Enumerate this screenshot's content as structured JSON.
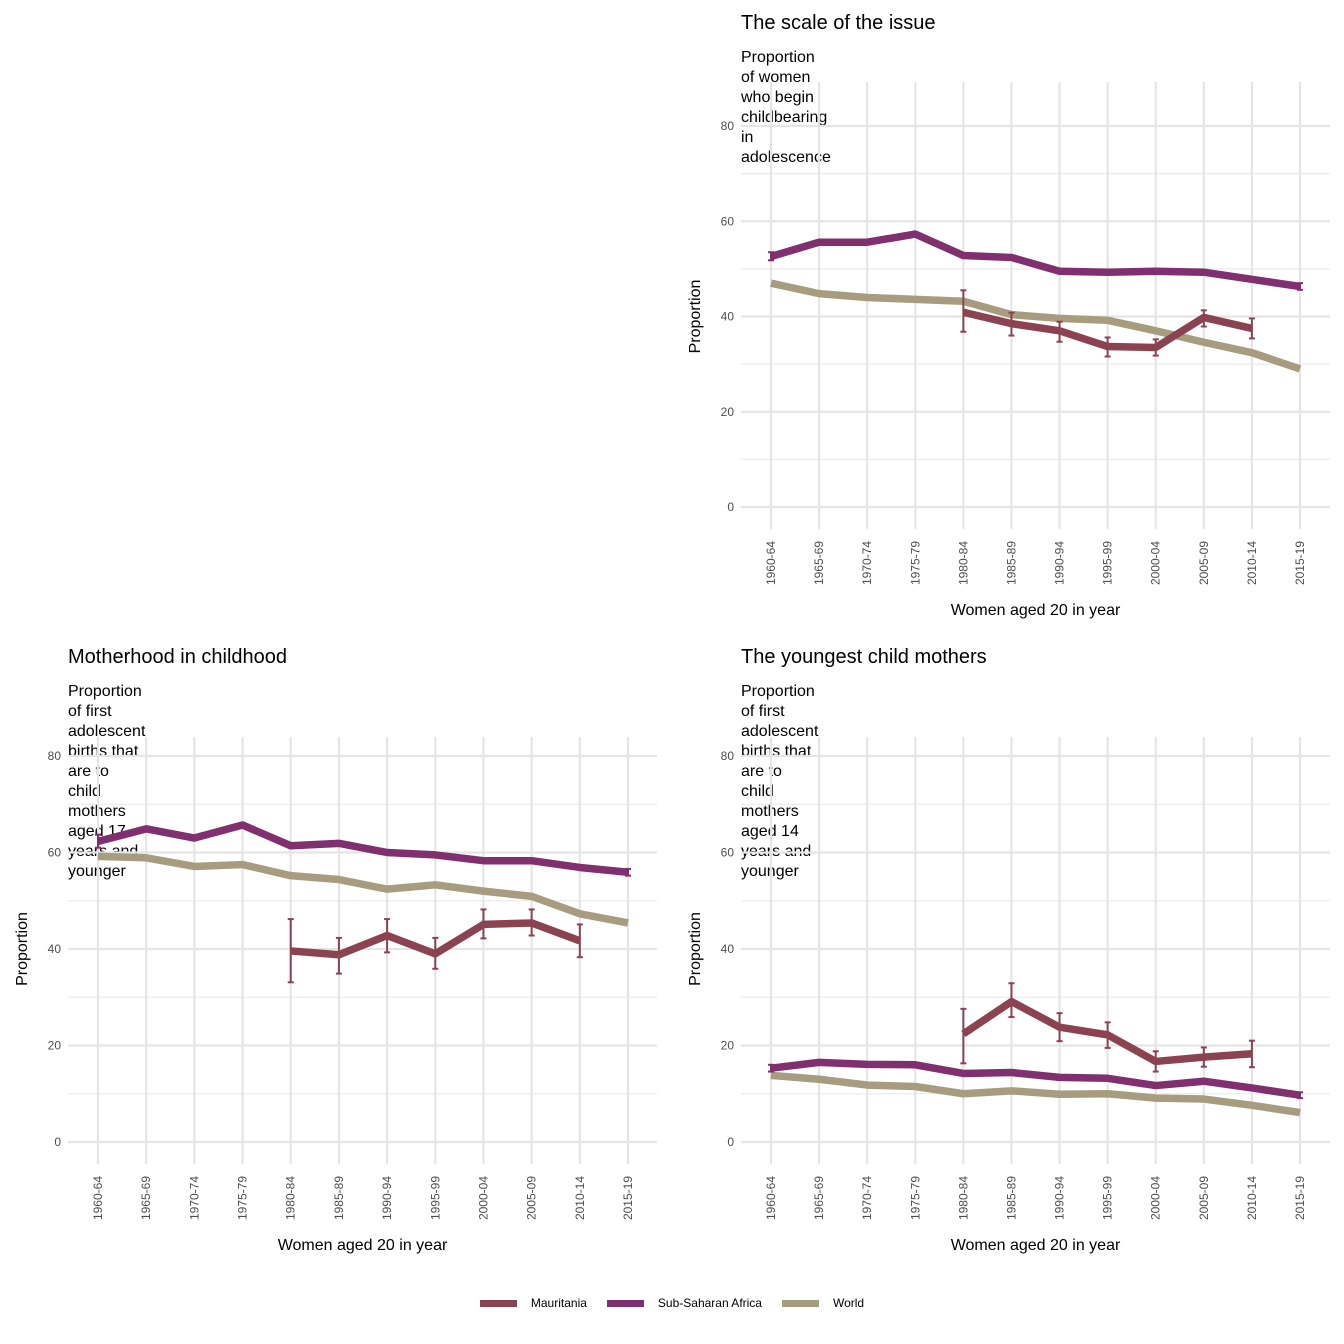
{
  "legend": {
    "items": [
      {
        "label": "Mauritania",
        "color": "#8b4352"
      },
      {
        "label": "Sub-Saharan Africa",
        "color": "#802f6f"
      },
      {
        "label": "World",
        "color": "#a89c80"
      }
    ]
  },
  "chart_data": [
    {
      "id": "scale",
      "type": "line",
      "title": "The scale of the issue",
      "subtitle": "Proportion of women who begin childbearing in adolescence",
      "xlabel": "Women aged 20 in year",
      "ylabel": "Proportion",
      "ylim": [
        0,
        85
      ],
      "yticks": [
        "0",
        "20",
        "40",
        "60",
        "80"
      ],
      "grid": true,
      "categories": [
        "1960-64",
        "1965-69",
        "1970-74",
        "1975-79",
        "1980-84",
        "1985-89",
        "1990-94",
        "1995-99",
        "2000-04",
        "2005-09",
        "2010-14",
        "2015-19"
      ],
      "series": [
        {
          "name": "World",
          "color": "#a89c80",
          "values": [
            47.0,
            44.8,
            44.0,
            43.6,
            43.2,
            40.4,
            39.6,
            39.2,
            37.0,
            34.6,
            32.4,
            29.0
          ]
        },
        {
          "name": "Sub-Saharan Africa",
          "color": "#802f6f",
          "values": [
            52.6,
            55.6,
            55.6,
            57.3,
            52.8,
            52.4,
            49.5,
            49.3,
            49.5,
            49.3,
            47.8,
            46.3
          ],
          "error_low": [
            51.8,
            null,
            null,
            null,
            null,
            null,
            null,
            null,
            null,
            null,
            null,
            45.6
          ],
          "error_high": [
            53.5,
            null,
            null,
            null,
            null,
            null,
            null,
            null,
            null,
            null,
            null,
            47.0
          ]
        },
        {
          "name": "Mauritania",
          "color": "#8b4352",
          "values": [
            null,
            null,
            null,
            null,
            40.9,
            38.5,
            37.0,
            33.7,
            33.5,
            39.8,
            37.5,
            null
          ],
          "error_low": [
            null,
            null,
            null,
            null,
            36.8,
            36.0,
            34.7,
            31.6,
            31.8,
            37.9,
            35.4,
            null
          ],
          "error_high": [
            null,
            null,
            null,
            null,
            45.5,
            40.8,
            38.9,
            35.6,
            35.2,
            41.3,
            39.6,
            null
          ]
        }
      ]
    },
    {
      "id": "motherhood",
      "type": "line",
      "title": "Motherhood in childhood",
      "subtitle": "Proportion of first adolescent births that are to child mothers\naged 17 years and younger",
      "xlabel": "Women aged 20 in year",
      "ylabel": "Proportion",
      "ylim": [
        0,
        85
      ],
      "yticks": [
        "0",
        "20",
        "40",
        "60",
        "80"
      ],
      "grid": true,
      "categories": [
        "1960-64",
        "1965-69",
        "1970-74",
        "1975-79",
        "1980-84",
        "1985-89",
        "1990-94",
        "1995-99",
        "2000-04",
        "2005-09",
        "2010-14",
        "2015-19"
      ],
      "series": [
        {
          "name": "World",
          "color": "#a89c80",
          "values": [
            59.2,
            58.9,
            57.1,
            57.5,
            55.2,
            54.4,
            52.4,
            53.3,
            52.0,
            50.9,
            47.3,
            45.4
          ]
        },
        {
          "name": "Sub-Saharan Africa",
          "color": "#802f6f",
          "values": [
            62.3,
            64.9,
            63.0,
            65.7,
            61.4,
            61.9,
            60.0,
            59.5,
            58.3,
            58.3,
            56.9,
            55.9
          ],
          "error_low": [
            61.0,
            null,
            null,
            null,
            null,
            null,
            null,
            null,
            null,
            null,
            null,
            55.2
          ],
          "error_high": [
            63.7,
            null,
            null,
            null,
            null,
            null,
            null,
            null,
            null,
            null,
            null,
            56.6
          ]
        },
        {
          "name": "Mauritania",
          "color": "#8b4352",
          "values": [
            null,
            null,
            null,
            null,
            39.6,
            38.8,
            42.8,
            39.0,
            45.1,
            45.4,
            41.7,
            null
          ],
          "error_low": [
            null,
            null,
            null,
            null,
            33.1,
            34.9,
            39.3,
            35.9,
            42.2,
            42.8,
            38.3,
            null
          ],
          "error_high": [
            null,
            null,
            null,
            null,
            46.2,
            42.3,
            46.2,
            42.3,
            48.2,
            48.2,
            45.1,
            null
          ]
        }
      ]
    },
    {
      "id": "youngest",
      "type": "line",
      "title": "The youngest child mothers",
      "subtitle": "Proportion of first adolescent births that are to child mothers\naged 14 years and younger",
      "xlabel": "Women aged 20 in year",
      "ylabel": "Proportion",
      "ylim": [
        0,
        85
      ],
      "yticks": [
        "0",
        "20",
        "40",
        "60",
        "80"
      ],
      "grid": true,
      "categories": [
        "1960-64",
        "1965-69",
        "1970-74",
        "1975-79",
        "1980-84",
        "1985-89",
        "1990-94",
        "1995-99",
        "2000-04",
        "2005-09",
        "2010-14",
        "2015-19"
      ],
      "series": [
        {
          "name": "World",
          "color": "#a89c80",
          "values": [
            13.8,
            13.0,
            11.8,
            11.5,
            10.0,
            10.6,
            9.9,
            10.0,
            9.1,
            8.9,
            7.6,
            6.1
          ]
        },
        {
          "name": "Sub-Saharan Africa",
          "color": "#802f6f",
          "values": [
            15.3,
            16.5,
            16.1,
            16.0,
            14.2,
            14.4,
            13.4,
            13.2,
            11.7,
            12.6,
            11.2,
            9.7
          ],
          "error_low": [
            14.6,
            null,
            null,
            null,
            null,
            null,
            null,
            null,
            null,
            null,
            null,
            9.1
          ],
          "error_high": [
            16.0,
            null,
            null,
            null,
            null,
            null,
            null,
            null,
            null,
            null,
            null,
            10.3
          ]
        },
        {
          "name": "Mauritania",
          "color": "#8b4352",
          "values": [
            null,
            null,
            null,
            null,
            22.4,
            29.1,
            23.8,
            22.2,
            16.7,
            17.6,
            18.3,
            null
          ],
          "error_low": [
            null,
            null,
            null,
            null,
            16.3,
            25.9,
            20.9,
            19.5,
            14.6,
            15.6,
            15.5,
            null
          ],
          "error_high": [
            null,
            null,
            null,
            null,
            27.6,
            32.9,
            26.7,
            24.8,
            18.8,
            19.6,
            21.0,
            null
          ]
        }
      ]
    }
  ]
}
